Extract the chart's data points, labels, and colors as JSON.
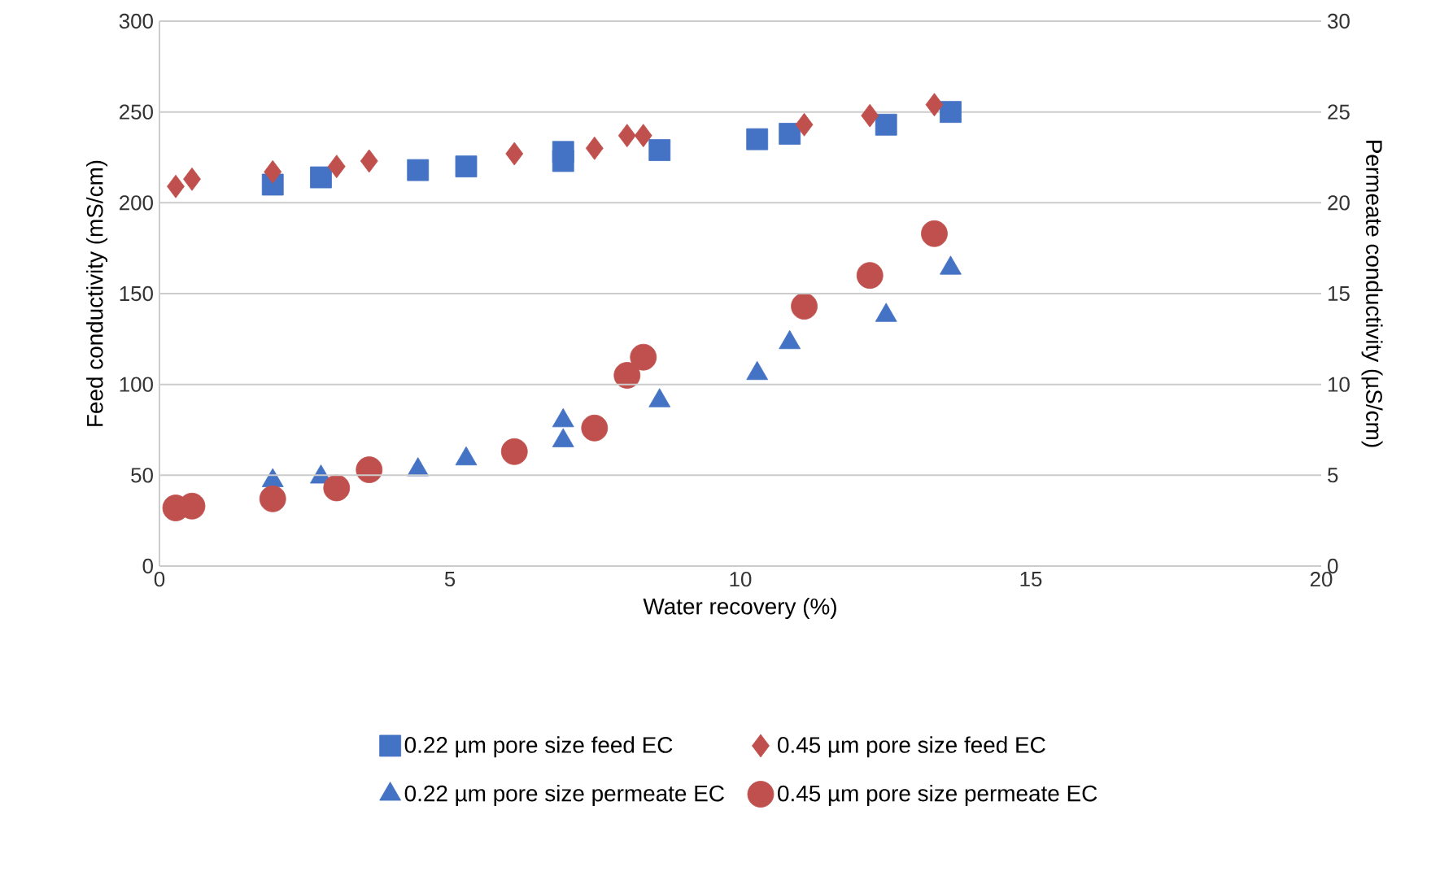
{
  "chart_data": {
    "type": "scatter",
    "xlabel": "Water recovery (%)",
    "ylabel": "Feed conductivity (mS/cm)",
    "y2label": "Permeate conductivity (µS/cm)",
    "xlim": [
      0,
      20
    ],
    "xticks": [
      0,
      5,
      10,
      15,
      20
    ],
    "ylim": [
      0,
      300
    ],
    "yticks": [
      0,
      50,
      100,
      150,
      200,
      250,
      300
    ],
    "y2lim": [
      0,
      30
    ],
    "y2ticks": [
      0,
      5,
      10,
      15,
      20,
      25,
      30
    ],
    "grid": "y",
    "legend": "bottom",
    "series": [
      {
        "name": "0.22 µm pore size feed EC",
        "color": "#4472c4",
        "marker": "square",
        "x": [
          1.95,
          2.78,
          4.45,
          5.28,
          6.95,
          6.95,
          8.61,
          10.29,
          10.85,
          12.51,
          13.62
        ],
        "values": [
          210,
          214,
          218,
          220,
          223,
          228,
          229,
          235,
          238,
          243,
          250
        ]
      },
      {
        "name": "0.45 µm pore size feed EC",
        "color": "#c0504d",
        "marker": "diamond",
        "x": [
          0.28,
          0.56,
          1.95,
          3.05,
          3.61,
          6.11,
          7.49,
          8.05,
          8.33,
          11.1,
          12.23,
          13.34
        ],
        "values": [
          209,
          213,
          217,
          220,
          223,
          227,
          230,
          237,
          237,
          243,
          248,
          254
        ]
      },
      {
        "name": "0.22 µm pore size permeate EC",
        "color": "#4472c4",
        "marker": "triangle",
        "axis": "y2",
        "x": [
          1.95,
          2.78,
          4.45,
          5.28,
          6.95,
          6.95,
          8.61,
          10.29,
          10.85,
          12.51,
          13.62
        ],
        "values": [
          4.7,
          4.9,
          5.3,
          5.9,
          6.9,
          8.0,
          9.1,
          10.6,
          12.3,
          13.8,
          16.4
        ]
      },
      {
        "name": "0.45 µm pore size permeate EC",
        "color": "#c0504d",
        "marker": "circle",
        "axis": "y2",
        "x": [
          0.28,
          0.56,
          1.95,
          3.05,
          3.61,
          6.11,
          7.49,
          8.05,
          8.33,
          11.1,
          12.23,
          13.34
        ],
        "values": [
          3.2,
          3.3,
          3.7,
          4.3,
          5.3,
          6.3,
          7.6,
          10.5,
          11.5,
          14.3,
          16.0,
          18.3
        ]
      }
    ]
  }
}
